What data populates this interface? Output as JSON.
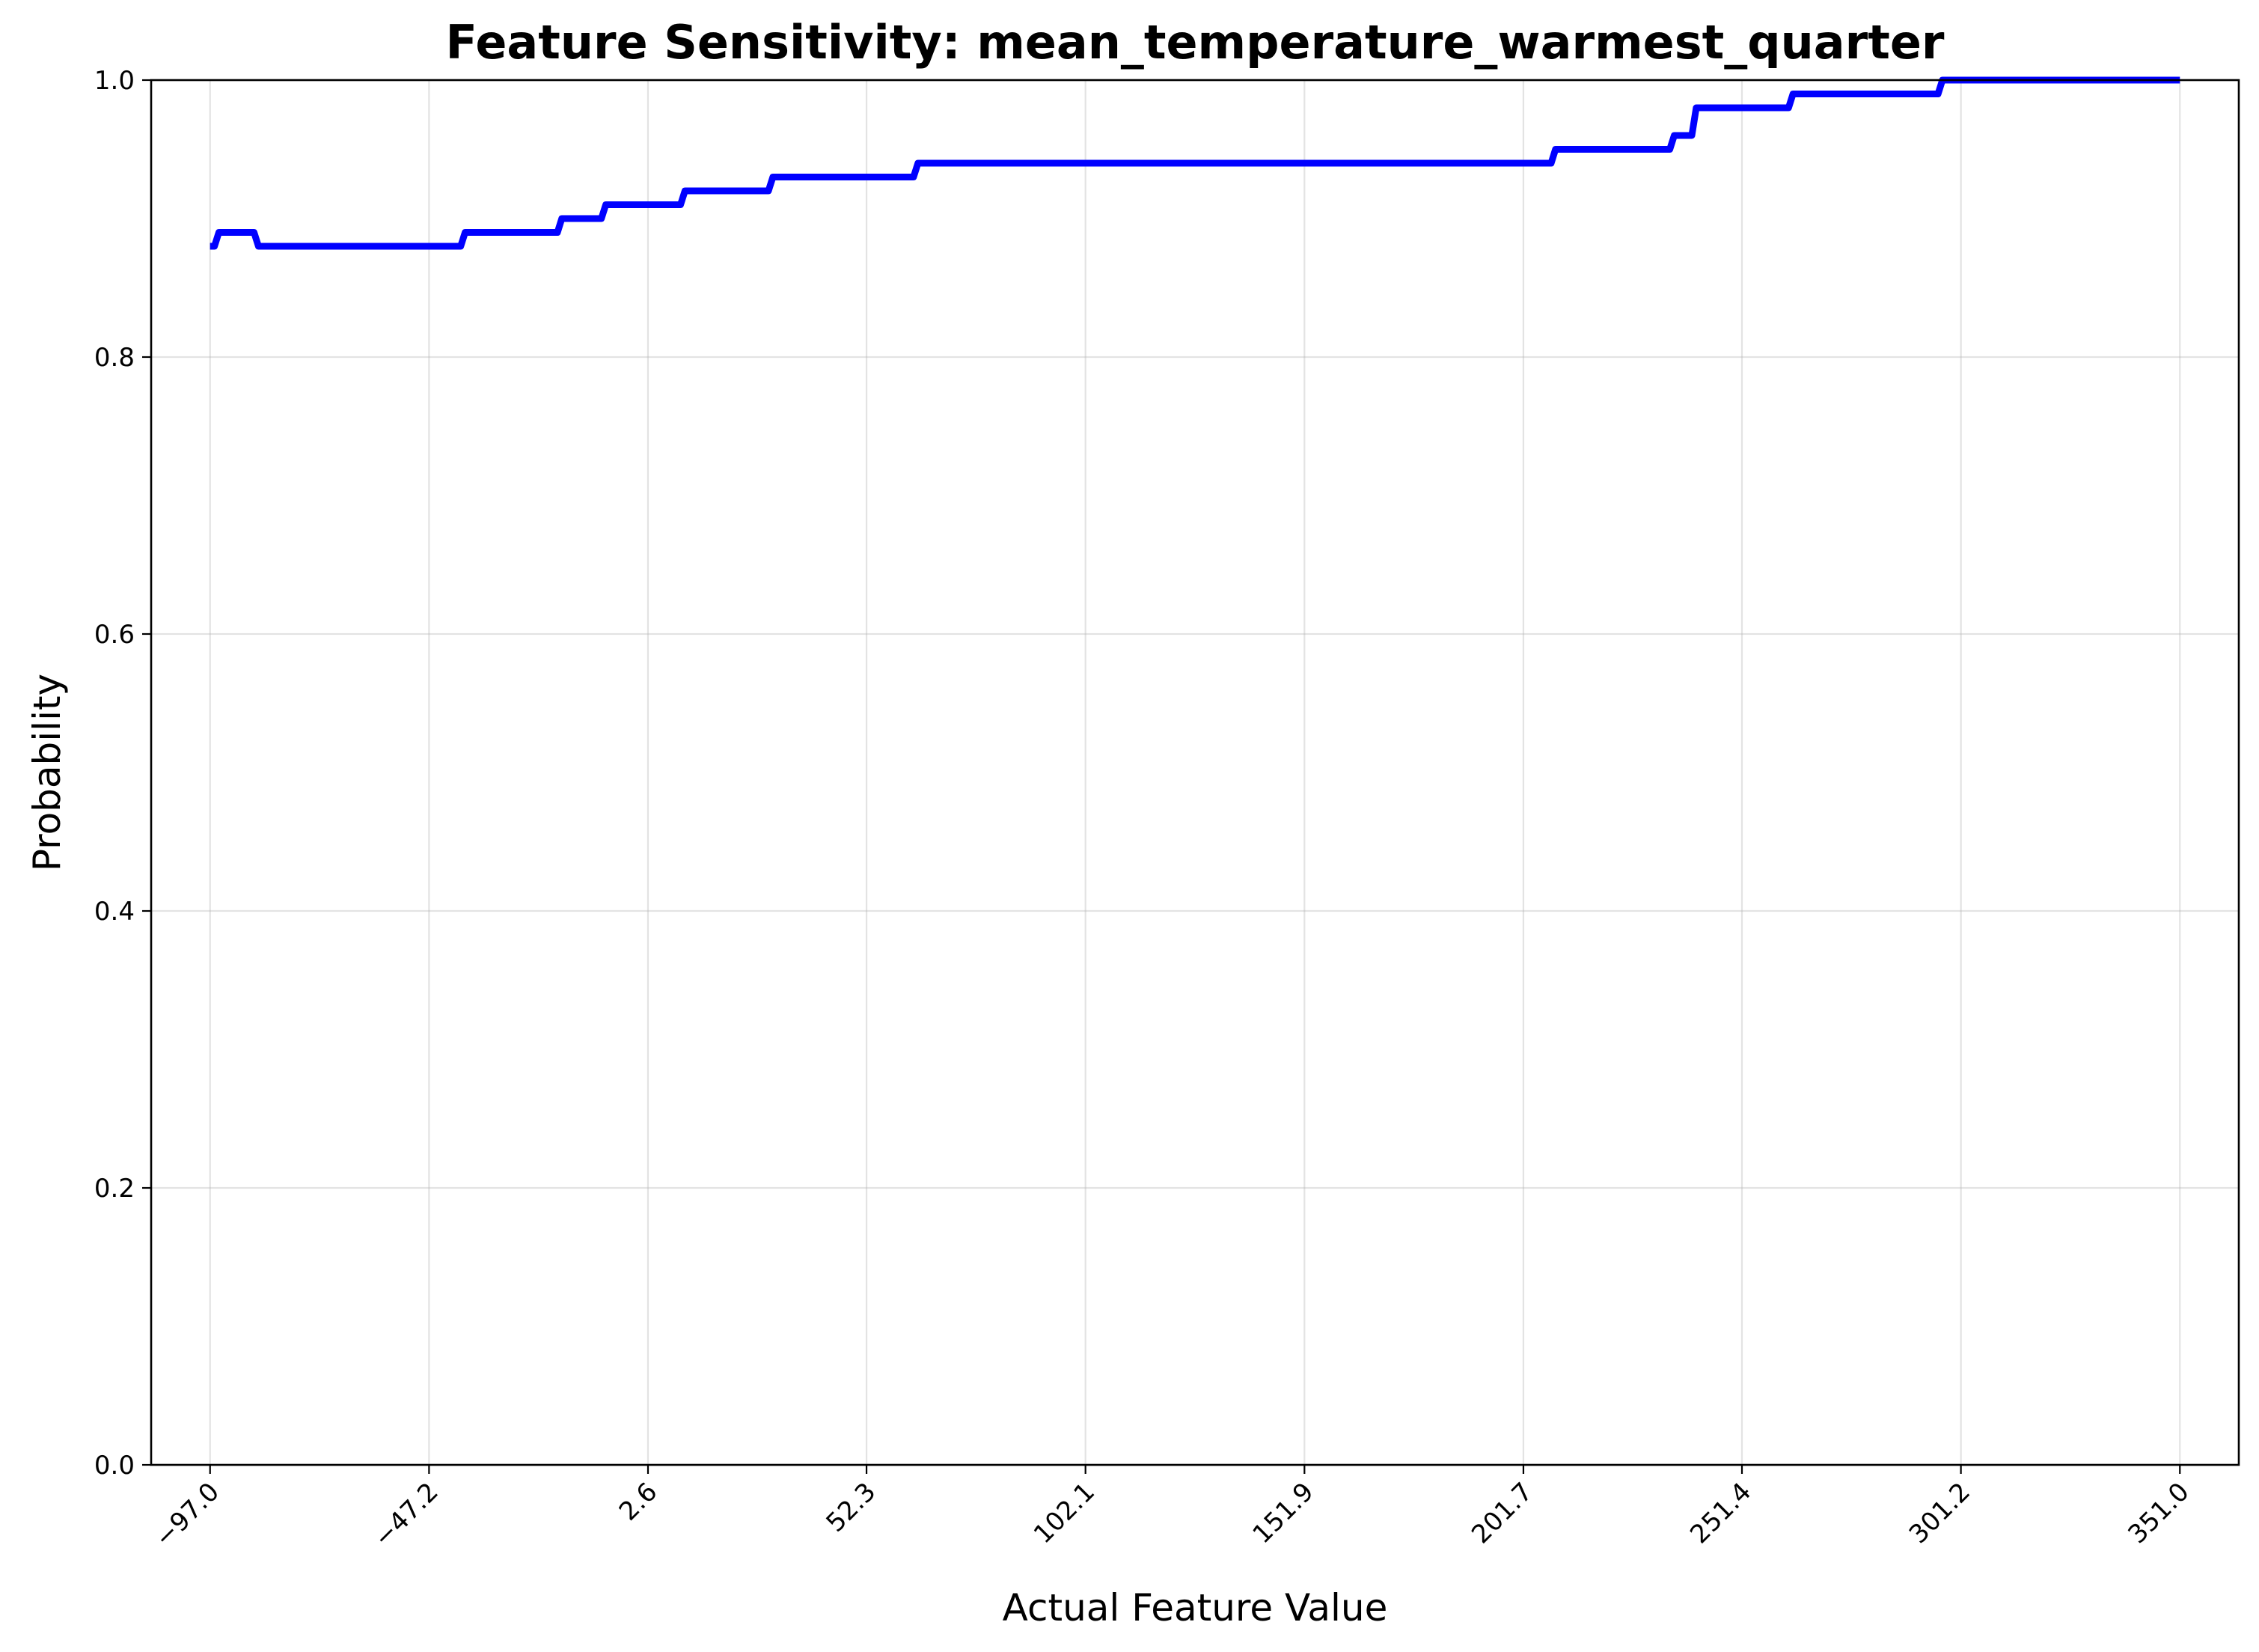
{
  "chart_data": {
    "type": "line",
    "title": "Feature Sensitivity: mean_temperature_warmest_quarter",
    "xlabel": "Actual Feature Value",
    "ylabel": "Probability",
    "xlim": [
      -110.4,
      364.4
    ],
    "ylim": [
      0,
      1
    ],
    "x_ticks": [
      -97.0,
      -47.2,
      2.6,
      52.3,
      102.1,
      151.9,
      201.7,
      251.4,
      301.2,
      351.0
    ],
    "x_tick_labels": [
      "−97.0",
      "−47.2",
      "2.6",
      "52.3",
      "102.1",
      "151.9",
      "201.7",
      "251.4",
      "301.2",
      "351.0"
    ],
    "y_ticks": [
      0.0,
      0.2,
      0.4,
      0.6,
      0.8,
      1.0
    ],
    "y_tick_labels": [
      "0.0",
      "0.2",
      "0.4",
      "0.6",
      "0.8",
      "1.0"
    ],
    "grid": true,
    "color": "#0000ff",
    "series": [
      {
        "x": [
          -97.0,
          -96.0,
          -95.0,
          -87.0,
          -86.0,
          -40.0,
          -39.0,
          -18.0,
          -17.0,
          -8.0,
          -7.0,
          10.0,
          11.0,
          30.0,
          31.0,
          63.0,
          64.0,
          208.0,
          209.0,
          235.0,
          236.0,
          240.0,
          241.0,
          262.0,
          263.0,
          296.0,
          297.0,
          351.0
        ],
        "y": [
          0.88,
          0.88,
          0.89,
          0.89,
          0.88,
          0.88,
          0.89,
          0.89,
          0.9,
          0.9,
          0.91,
          0.91,
          0.92,
          0.92,
          0.93,
          0.93,
          0.94,
          0.94,
          0.95,
          0.95,
          0.96,
          0.96,
          0.98,
          0.98,
          0.99,
          0.99,
          1.0,
          1.0
        ]
      }
    ]
  }
}
